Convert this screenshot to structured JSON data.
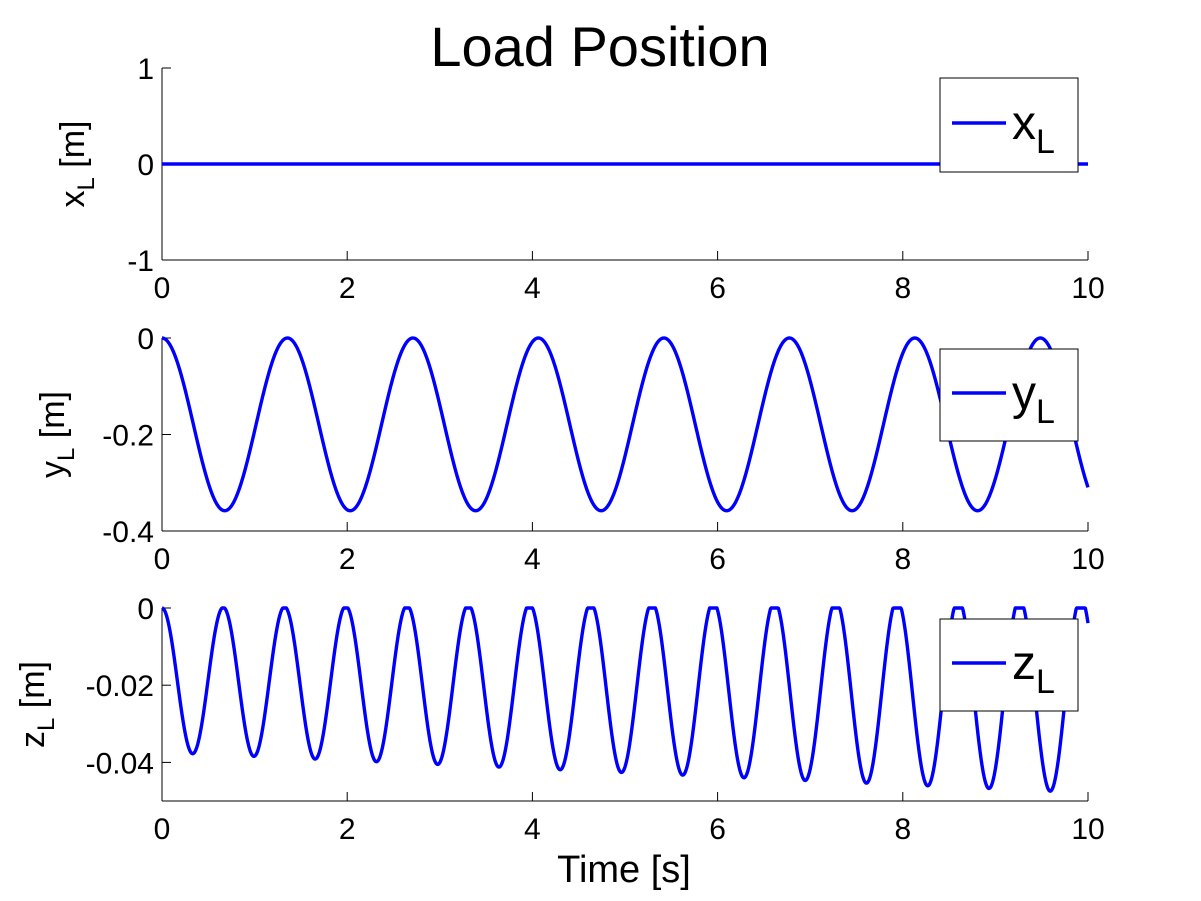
{
  "figure": {
    "title": "Load Position",
    "xlabel": "Time [s]"
  },
  "colors": {
    "line": "#0000ff",
    "axes": "#000000",
    "background": "#ffffff"
  },
  "chart_data": [
    {
      "type": "line",
      "ylabel_main": "x",
      "ylabel_sub": "L",
      "ylabel_unit": " [m]",
      "xlim": [
        0,
        10
      ],
      "ylim": [
        -1,
        1
      ],
      "xticks": [
        "0",
        "2",
        "4",
        "6",
        "8",
        "10"
      ],
      "xtick_values": [
        0,
        2,
        4,
        6,
        8,
        10
      ],
      "yticks": [
        "-1",
        "0",
        "1"
      ],
      "ytick_values": [
        -1,
        0,
        1
      ],
      "legend": {
        "main": "x",
        "sub": "L",
        "placement": "top-right"
      },
      "series": [
        {
          "kind": "constant",
          "value": 0
        }
      ]
    },
    {
      "type": "line",
      "ylabel_main": "y",
      "ylabel_sub": "L",
      "ylabel_unit": " [m]",
      "xlim": [
        0,
        10
      ],
      "ylim": [
        -0.4,
        0
      ],
      "xticks": [
        "0",
        "2",
        "4",
        "6",
        "8",
        "10"
      ],
      "xtick_values": [
        0,
        2,
        4,
        6,
        8,
        10
      ],
      "yticks": [
        "-0.4",
        "-0.2",
        "0"
      ],
      "ytick_values": [
        -0.4,
        -0.2,
        0
      ],
      "legend": {
        "main": "y",
        "sub": "L",
        "placement": "top-right"
      },
      "series": [
        {
          "kind": "cosine",
          "offset": -0.179,
          "amplitude": 0.179,
          "period": 1.355,
          "amp_growth": 0
        }
      ]
    },
    {
      "type": "line",
      "ylabel_main": "z",
      "ylabel_sub": "L",
      "ylabel_unit": " [m]",
      "xlim": [
        0,
        10
      ],
      "ylim": [
        -0.05,
        0
      ],
      "xticks": [
        "0",
        "2",
        "4",
        "6",
        "8",
        "10"
      ],
      "xtick_values": [
        0,
        2,
        4,
        6,
        8,
        10
      ],
      "yticks": [
        "-0.04",
        "-0.02",
        "0"
      ],
      "ytick_values": [
        -0.04,
        -0.02,
        0
      ],
      "legend": {
        "main": "z",
        "sub": "L",
        "placement": "top-right"
      },
      "series": [
        {
          "kind": "cosine",
          "offset": -0.0187,
          "amplitude": 0.0187,
          "period": 0.6615,
          "amp_growth": 0.035
        }
      ]
    }
  ]
}
